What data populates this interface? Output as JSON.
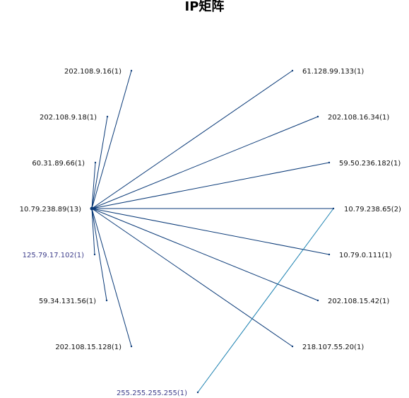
{
  "title": "IP矩阵",
  "colors": {
    "edge": "#0a3a78",
    "edge_light": "#1a80b0",
    "label": "#111111",
    "label_muted": "#3d3d8a"
  },
  "nodes": [
    {
      "id": "center",
      "label": "10.79.238.89(13)"
    },
    {
      "id": "l1",
      "label": "202.108.9.16(1)"
    },
    {
      "id": "l2",
      "label": "202.108.9.18(1)"
    },
    {
      "id": "l3",
      "label": "60.31.89.66(1)"
    },
    {
      "id": "l4",
      "label": "125.79.17.102(1)",
      "muted": true
    },
    {
      "id": "l5",
      "label": "59.34.131.56(1)"
    },
    {
      "id": "l6",
      "label": "202.108.15.128(1)"
    },
    {
      "id": "r1",
      "label": "61.128.99.133(1)"
    },
    {
      "id": "r2",
      "label": "202.108.16.34(1)"
    },
    {
      "id": "r3",
      "label": "59.50.236.182(1)"
    },
    {
      "id": "r4",
      "label": "10.79.238.65(2)"
    },
    {
      "id": "r5",
      "label": "10.79.0.111(1)"
    },
    {
      "id": "r6",
      "label": "202.108.15.42(1)"
    },
    {
      "id": "r7",
      "label": "218.107.55.20(1)"
    },
    {
      "id": "b1",
      "label": "255.255.255.255(1)",
      "muted": true
    }
  ],
  "edges": [
    [
      "center",
      "l1"
    ],
    [
      "center",
      "l2"
    ],
    [
      "center",
      "l3"
    ],
    [
      "center",
      "l4"
    ],
    [
      "center",
      "l5"
    ],
    [
      "center",
      "l6"
    ],
    [
      "center",
      "r1"
    ],
    [
      "center",
      "r2"
    ],
    [
      "center",
      "r3"
    ],
    [
      "center",
      "r4"
    ],
    [
      "center",
      "r5"
    ],
    [
      "center",
      "r6"
    ],
    [
      "center",
      "r7"
    ],
    [
      "r4",
      "b1",
      "light"
    ]
  ]
}
